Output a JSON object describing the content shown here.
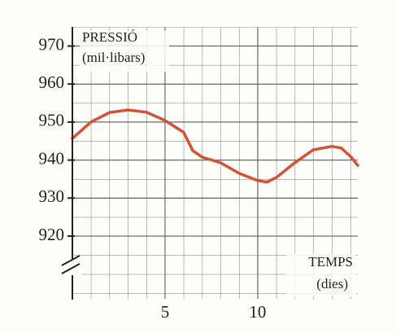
{
  "chart_data": {
    "type": "line",
    "y_label_line1": "PRESSIÓ",
    "y_label_line2": "(mil·libars)",
    "x_label_line1": "TEMPS",
    "x_label_line2": "(dies)",
    "x": [
      0,
      1,
      2,
      3,
      4,
      5,
      6,
      6.5,
      7,
      8,
      9,
      10,
      10.5,
      11,
      12,
      13,
      14,
      14.5,
      15,
      15.4
    ],
    "series": [
      {
        "color": "#cf5535",
        "values": [
          945.7,
          950,
          952.5,
          953.2,
          952.6,
          950.4,
          947.3,
          942.5,
          940.8,
          939.3,
          936.5,
          934.6,
          934.2,
          935.4,
          939.3,
          942.7,
          943.6,
          943.2,
          941,
          938.6
        ]
      }
    ],
    "xlim": [
      0,
      15.4
    ],
    "xticks": [
      5,
      10
    ],
    "ylim": [
      903.5,
      975
    ],
    "yticks": [
      920,
      930,
      940,
      950,
      960,
      970
    ],
    "grid": true
  }
}
